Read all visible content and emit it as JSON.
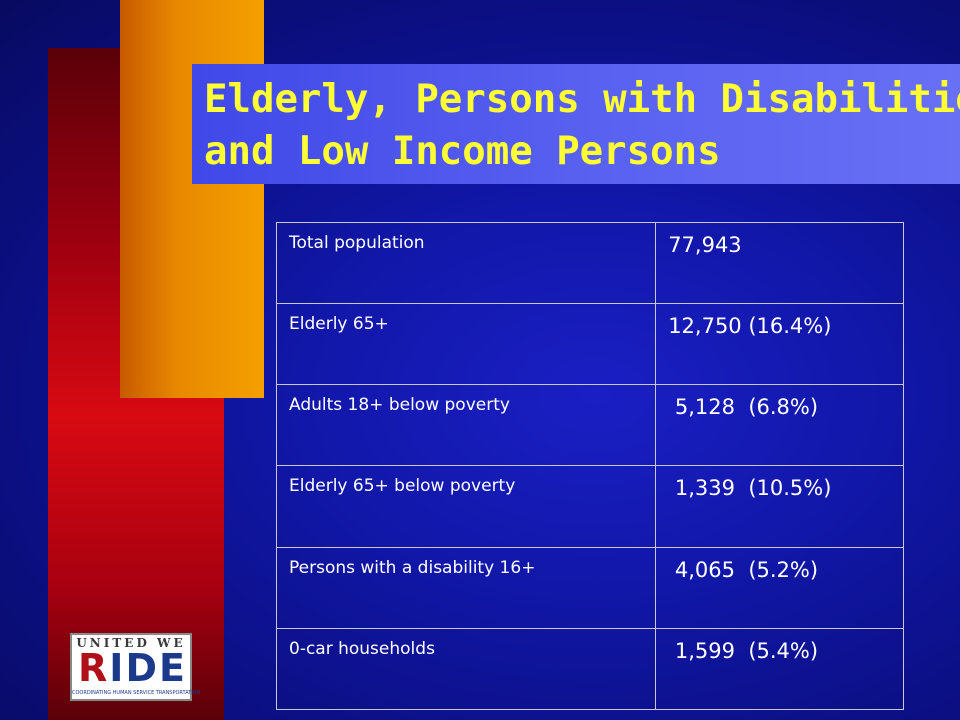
{
  "slide": {
    "title_lines": [
      "Elderly, Persons with Disabilities",
      "and Low Income Persons"
    ]
  },
  "table": {
    "rows": [
      {
        "label": "Total population",
        "value": "77,943"
      },
      {
        "label": "Elderly 65+",
        "value": "12,750 (16.4%)"
      },
      {
        "label": "Adults 18+ below poverty",
        "value": " 5,128  (6.8%)"
      },
      {
        "label": "Elderly 65+ below poverty",
        "value": " 1,339  (10.5%)"
      },
      {
        "label": "Persons with a disability 16+",
        "value": " 4,065  (5.2%)"
      },
      {
        "label": "0-car households",
        "value": " 1,599  (5.4%)"
      }
    ]
  },
  "logo": {
    "top_text": "UNITED WE",
    "main_letters": [
      "R",
      "I",
      "D",
      "E"
    ],
    "tagline": "COORDINATING HUMAN SERVICE TRANSPORTATION"
  },
  "colors": {
    "background": "#1117a8",
    "title_text": "#ffff33",
    "title_box": "#5860f0",
    "red_bar": "#d80a12",
    "orange_bar": "#f5a000",
    "table_text": "#ffffff",
    "table_border": "#c8c8d8"
  }
}
